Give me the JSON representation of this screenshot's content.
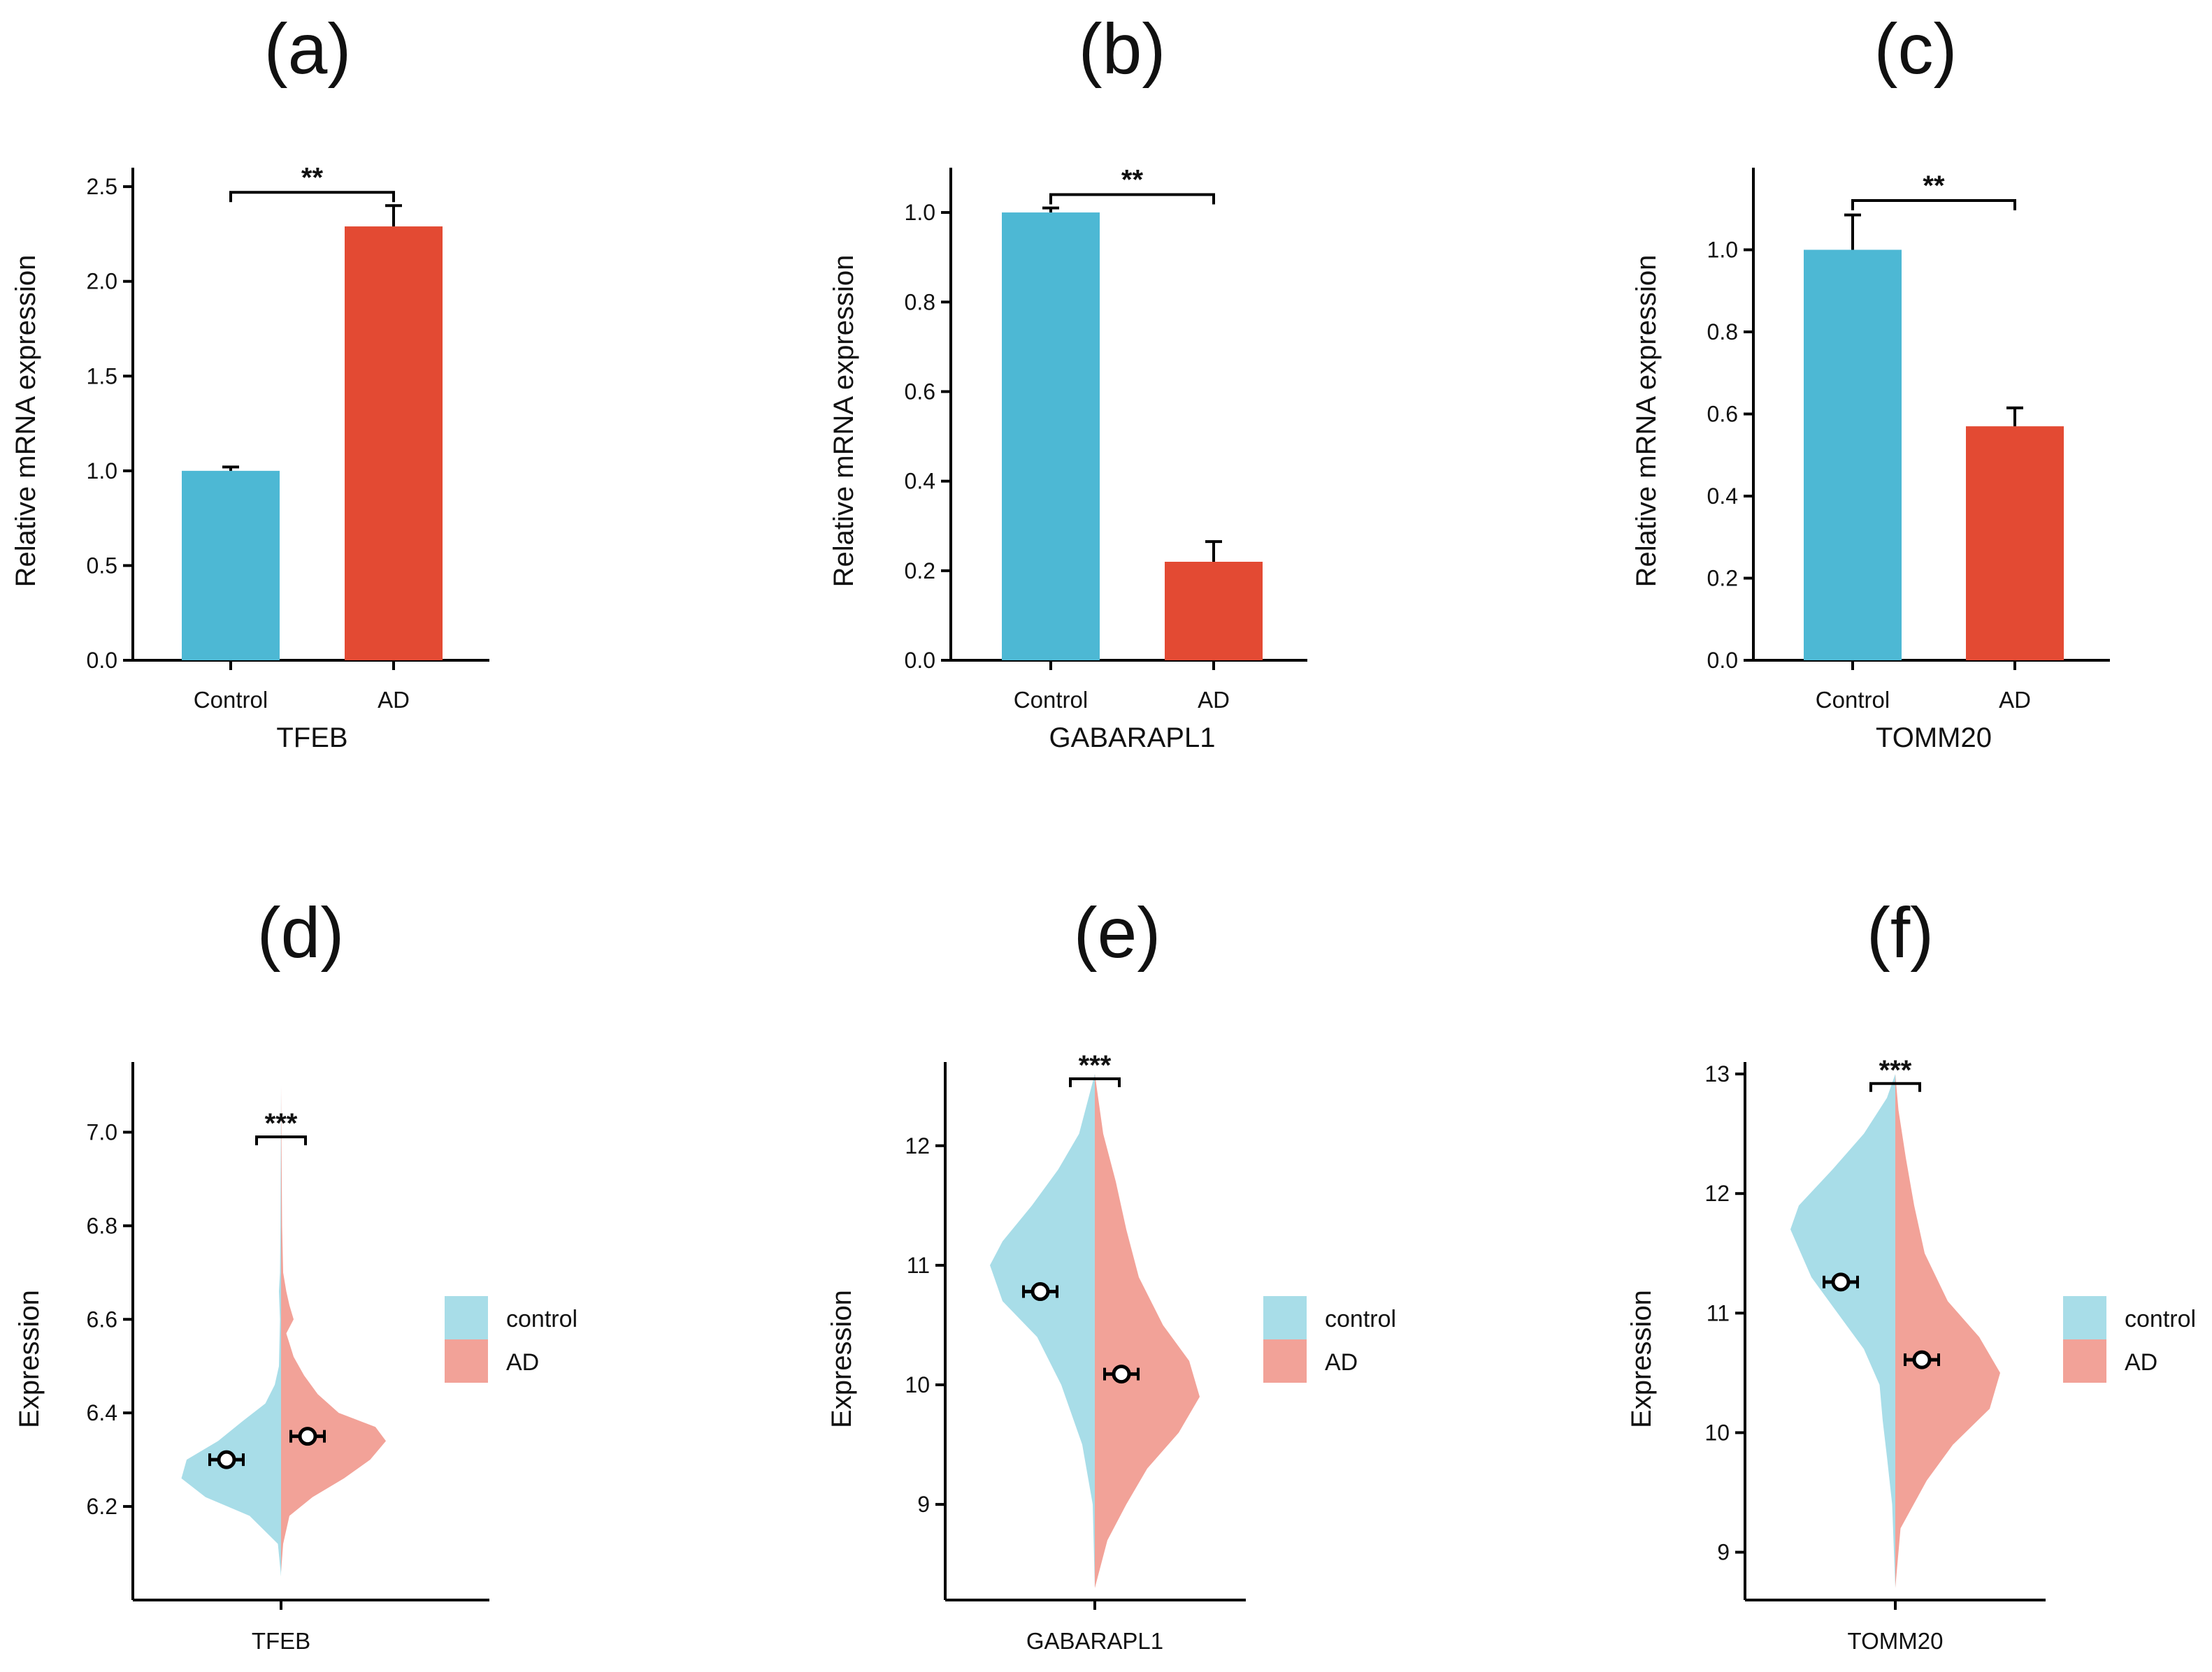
{
  "colors": {
    "control_bar": "#4DB8D4",
    "ad_bar": "#E34A33",
    "control_violin": "#A8DDE8",
    "ad_violin": "#F2A298",
    "axis": "#000000"
  },
  "chart_data": [
    {
      "panel": "(a)",
      "type": "bar",
      "categories": [
        "Control",
        "AD"
      ],
      "values": [
        1.0,
        2.29
      ],
      "errors": [
        0.02,
        0.11
      ],
      "significance": "**",
      "xlabel": "TFEB",
      "ylabel": "Relative mRNA expression",
      "ylim": [
        0,
        2.6
      ],
      "yticks": [
        0.0,
        0.5,
        1.0,
        1.5,
        2.0,
        2.5
      ],
      "tick_decimals": 1,
      "bracket_at": 2.47
    },
    {
      "panel": "(b)",
      "type": "bar",
      "categories": [
        "Control",
        "AD"
      ],
      "values": [
        1.0,
        0.22
      ],
      "errors": [
        0.01,
        0.045
      ],
      "significance": "**",
      "xlabel": "GABARAPL1",
      "ylabel": "Relative mRNA expression",
      "ylim": [
        0,
        1.1
      ],
      "yticks": [
        0.0,
        0.2,
        0.4,
        0.6,
        0.8,
        1.0
      ],
      "tick_decimals": 1,
      "bracket_at": 1.04
    },
    {
      "panel": "(c)",
      "type": "bar",
      "categories": [
        "Control",
        "AD"
      ],
      "values": [
        1.0,
        0.57
      ],
      "errors": [
        0.085,
        0.045
      ],
      "significance": "**",
      "xlabel": "TOMM20",
      "ylabel": "Relative mRNA expression",
      "ylim": [
        0,
        1.2
      ],
      "yticks": [
        0.0,
        0.2,
        0.4,
        0.6,
        0.8,
        1.0
      ],
      "tick_decimals": 1,
      "bracket_at": 1.12
    },
    {
      "panel": "(d)",
      "type": "split-violin",
      "groups": [
        "control",
        "AD"
      ],
      "means": [
        6.3,
        6.35
      ],
      "sem": [
        0.01,
        0.01
      ],
      "range": [
        6.05,
        7.1
      ],
      "control_profile": [
        [
          6.05,
          0
        ],
        [
          6.12,
          0.03
        ],
        [
          6.18,
          0.3
        ],
        [
          6.22,
          0.72
        ],
        [
          6.26,
          0.95
        ],
        [
          6.3,
          0.9
        ],
        [
          6.34,
          0.6
        ],
        [
          6.38,
          0.38
        ],
        [
          6.42,
          0.15
        ],
        [
          6.46,
          0.06
        ],
        [
          6.5,
          0.02
        ],
        [
          6.6,
          0.01
        ],
        [
          6.66,
          0.02
        ],
        [
          6.7,
          0.01
        ],
        [
          6.8,
          0.006
        ],
        [
          7.1,
          0
        ]
      ],
      "ad_profile": [
        [
          6.06,
          0
        ],
        [
          6.12,
          0.02
        ],
        [
          6.18,
          0.08
        ],
        [
          6.22,
          0.3
        ],
        [
          6.26,
          0.6
        ],
        [
          6.3,
          0.85
        ],
        [
          6.34,
          1.0
        ],
        [
          6.37,
          0.9
        ],
        [
          6.4,
          0.55
        ],
        [
          6.44,
          0.35
        ],
        [
          6.48,
          0.22
        ],
        [
          6.52,
          0.12
        ],
        [
          6.57,
          0.05
        ],
        [
          6.6,
          0.12
        ],
        [
          6.63,
          0.08
        ],
        [
          6.66,
          0.05
        ],
        [
          6.7,
          0.02
        ],
        [
          6.8,
          0.01
        ],
        [
          7.1,
          0
        ]
      ],
      "significance": "***",
      "xlabel": "TFEB",
      "ylabel": "Expression",
      "ylim": [
        6.0,
        7.15
      ],
      "yticks": [
        6.2,
        6.4,
        6.6,
        6.8,
        7.0
      ],
      "tick_decimals": 1,
      "bracket_at": 6.99,
      "legend": [
        "control",
        "AD"
      ]
    },
    {
      "panel": "(e)",
      "type": "split-violin",
      "groups": [
        "control",
        "AD"
      ],
      "means": [
        10.78,
        10.09
      ],
      "sem": [
        0.05,
        0.05
      ],
      "range": [
        8.3,
        12.6
      ],
      "control_profile": [
        [
          8.3,
          0
        ],
        [
          9.0,
          0.02
        ],
        [
          9.5,
          0.12
        ],
        [
          10.0,
          0.32
        ],
        [
          10.4,
          0.55
        ],
        [
          10.7,
          0.88
        ],
        [
          11.0,
          1.0
        ],
        [
          11.2,
          0.88
        ],
        [
          11.5,
          0.6
        ],
        [
          11.8,
          0.35
        ],
        [
          12.1,
          0.15
        ],
        [
          12.6,
          0
        ]
      ],
      "ad_profile": [
        [
          8.3,
          0
        ],
        [
          8.7,
          0.12
        ],
        [
          9.0,
          0.3
        ],
        [
          9.3,
          0.5
        ],
        [
          9.6,
          0.8
        ],
        [
          9.9,
          1.0
        ],
        [
          10.2,
          0.9
        ],
        [
          10.5,
          0.65
        ],
        [
          10.9,
          0.42
        ],
        [
          11.3,
          0.3
        ],
        [
          11.7,
          0.2
        ],
        [
          12.1,
          0.08
        ],
        [
          12.6,
          0
        ]
      ],
      "significance": "***",
      "xlabel": "GABARAPL1",
      "ylabel": "Expression",
      "ylim": [
        8.2,
        12.7
      ],
      "yticks": [
        9,
        10,
        11,
        12
      ],
      "tick_decimals": 0,
      "bracket_at": 12.56,
      "legend": [
        "control",
        "AD"
      ]
    },
    {
      "panel": "(f)",
      "type": "split-violin",
      "groups": [
        "control",
        "AD"
      ],
      "means": [
        11.26,
        10.61
      ],
      "sem": [
        0.05,
        0.05
      ],
      "range": [
        8.7,
        13.0
      ],
      "control_profile": [
        [
          8.7,
          0
        ],
        [
          9.4,
          0.03
        ],
        [
          9.8,
          0.08
        ],
        [
          10.1,
          0.12
        ],
        [
          10.4,
          0.15
        ],
        [
          10.7,
          0.3
        ],
        [
          11.0,
          0.55
        ],
        [
          11.3,
          0.8
        ],
        [
          11.7,
          1.0
        ],
        [
          11.9,
          0.92
        ],
        [
          12.2,
          0.6
        ],
        [
          12.5,
          0.3
        ],
        [
          12.8,
          0.08
        ],
        [
          13.0,
          0
        ]
      ],
      "ad_profile": [
        [
          8.7,
          0
        ],
        [
          9.2,
          0.05
        ],
        [
          9.6,
          0.3
        ],
        [
          9.9,
          0.55
        ],
        [
          10.2,
          0.9
        ],
        [
          10.5,
          1.0
        ],
        [
          10.8,
          0.8
        ],
        [
          11.1,
          0.5
        ],
        [
          11.5,
          0.28
        ],
        [
          11.9,
          0.18
        ],
        [
          12.3,
          0.1
        ],
        [
          12.7,
          0.03
        ],
        [
          13.0,
          0
        ]
      ],
      "significance": "***",
      "xlabel": "TOMM20",
      "ylabel": "Expression",
      "ylim": [
        8.6,
        13.1
      ],
      "yticks": [
        9,
        10,
        11,
        12,
        13
      ],
      "tick_decimals": 0,
      "bracket_at": 12.92,
      "legend": [
        "control",
        "AD"
      ]
    }
  ]
}
